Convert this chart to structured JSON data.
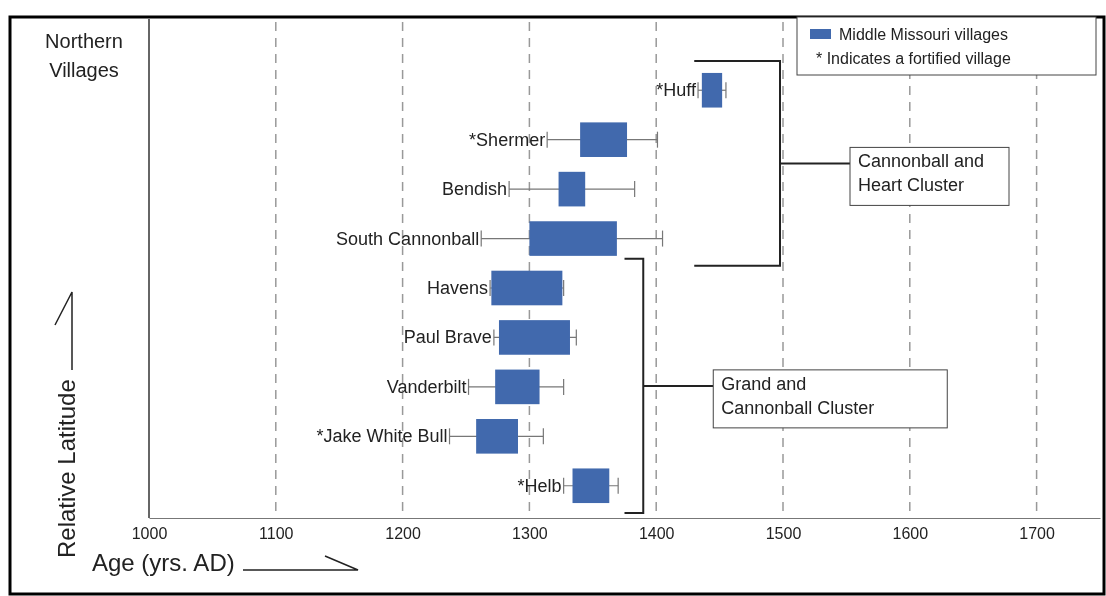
{
  "chart_data": {
    "type": "bar",
    "orientation": "horizontal",
    "xlabel": "Age (yrs. AD)",
    "ylabel": "Relative Latitude",
    "categories": [
      "*Huff",
      "*Shermer",
      "Bendish",
      "South Cannonball",
      "Havens",
      "Paul Brave",
      "Vanderbilt",
      "*Jake White Bull",
      "*Helb"
    ],
    "series": [
      {
        "name": "Middle Missouri villages",
        "color": "#4169ad",
        "base": [
          1436,
          1340,
          1323,
          1300,
          1270,
          1276,
          1273,
          1258,
          1334
        ],
        "values": [
          16,
          37,
          21,
          69,
          56,
          56,
          35,
          33,
          29
        ],
        "errors": [
          [
            1433,
            1455
          ],
          [
            1314,
            1401
          ],
          [
            1284,
            1383
          ],
          [
            1262,
            1405
          ],
          [
            1269,
            1327
          ],
          [
            1272,
            1337
          ],
          [
            1252,
            1327
          ],
          [
            1237,
            1311
          ],
          [
            1327,
            1370
          ]
        ]
      }
    ],
    "xlim": [
      1000,
      1750
    ],
    "xticks": [
      1000,
      1100,
      1200,
      1300,
      1400,
      1500,
      1600,
      1700
    ],
    "grid": "x",
    "legend": "top right",
    "annotations": [
      "Northern Villages",
      "* Indicates a fortified village",
      "Cannonball and Heart Cluster",
      "Grand and Cannonball Cluster"
    ]
  }
}
